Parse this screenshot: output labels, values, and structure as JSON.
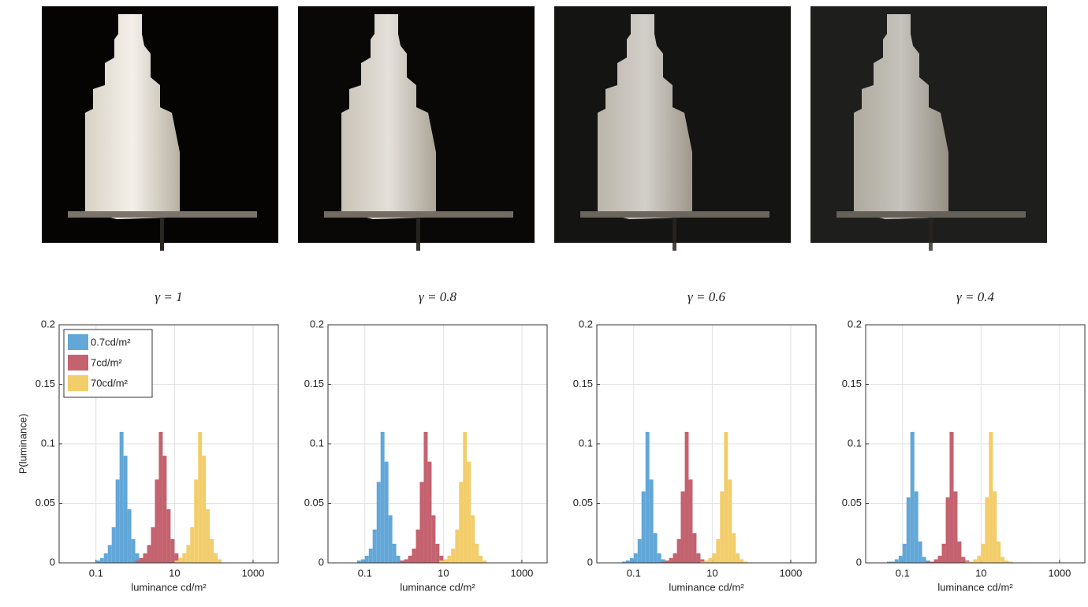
{
  "chart_data": [
    {
      "type": "histogram",
      "title": "γ = 1",
      "x_label": "luminance cd/m²",
      "y_label": "P(luminance)",
      "xscale": "log",
      "grid": true,
      "legend": "upper left",
      "xlim": [
        0.0115,
        4400
      ],
      "xticks": [
        0.1,
        10,
        1000
      ],
      "ylim": [
        0,
        0.2
      ],
      "yticks": [
        0,
        0.05,
        0.1,
        0.15,
        0.2
      ],
      "series": [
        {
          "name": "0.7cd/m²",
          "color": "#62a7d8",
          "bins": [
            0.1,
            0.126,
            0.158,
            0.2,
            0.251,
            0.316,
            0.398,
            0.501,
            0.631,
            0.794,
            1,
            1.26,
            1.58
          ],
          "values": [
            0.002,
            0.004,
            0.008,
            0.015,
            0.03,
            0.07,
            0.11,
            0.09,
            0.045,
            0.02,
            0.008,
            0.003
          ]
        },
        {
          "name": "7cd/m²",
          "color": "#c4626f",
          "bins": [
            1,
            1.26,
            1.58,
            2,
            2.51,
            3.16,
            3.98,
            5.01,
            6.31,
            7.94,
            10,
            12.6,
            15.8
          ],
          "values": [
            0.002,
            0.004,
            0.008,
            0.015,
            0.03,
            0.07,
            0.11,
            0.09,
            0.045,
            0.02,
            0.008,
            0.003
          ]
        },
        {
          "name": "70cd/m²",
          "color": "#f2cd6a",
          "bins": [
            10,
            12.6,
            15.8,
            20,
            25.1,
            31.6,
            39.8,
            50.1,
            63.1,
            79.4,
            100,
            126,
            158
          ],
          "values": [
            0.002,
            0.004,
            0.008,
            0.015,
            0.03,
            0.07,
            0.11,
            0.09,
            0.045,
            0.02,
            0.008,
            0.003
          ]
        }
      ]
    },
    {
      "type": "histogram",
      "title": "γ = 0.8",
      "x_label": "luminance cd/m²",
      "xscale": "log",
      "grid": true,
      "xlim": [
        0.0115,
        4400
      ],
      "xticks": [
        0.1,
        10,
        1000
      ],
      "ylim": [
        0,
        0.2
      ],
      "yticks": [
        0,
        0.05,
        0.1,
        0.15,
        0.2
      ],
      "series": [
        {
          "name": "0.7cd/m²",
          "color": "#62a7d8",
          "bins": [
            0.0631,
            0.0794,
            0.1,
            0.126,
            0.158,
            0.2,
            0.251,
            0.316,
            0.398,
            0.501,
            0.631,
            0.794,
            1
          ],
          "values": [
            0.002,
            0.003,
            0.006,
            0.012,
            0.028,
            0.068,
            0.11,
            0.085,
            0.04,
            0.016,
            0.006,
            0.002
          ]
        },
        {
          "name": "7cd/m²",
          "color": "#c4626f",
          "bins": [
            0.794,
            1,
            1.26,
            1.58,
            2,
            2.51,
            3.16,
            3.98,
            5.01,
            6.31,
            7.94,
            10,
            12.6
          ],
          "values": [
            0.002,
            0.003,
            0.006,
            0.012,
            0.028,
            0.068,
            0.11,
            0.085,
            0.04,
            0.016,
            0.006,
            0.002
          ]
        },
        {
          "name": "70cd/m²",
          "color": "#f2cd6a",
          "bins": [
            7.94,
            10,
            12.6,
            15.8,
            20,
            25.1,
            31.6,
            39.8,
            50.1,
            63.1,
            79.4,
            100,
            126
          ],
          "values": [
            0.002,
            0.003,
            0.006,
            0.012,
            0.028,
            0.068,
            0.11,
            0.085,
            0.04,
            0.016,
            0.006,
            0.002
          ]
        }
      ]
    },
    {
      "type": "histogram",
      "title": "γ = 0.6",
      "x_label": "luminance cd/m²",
      "xscale": "log",
      "grid": true,
      "xlim": [
        0.0115,
        4400
      ],
      "xticks": [
        0.1,
        10,
        1000
      ],
      "ylim": [
        0,
        0.2
      ],
      "yticks": [
        0,
        0.05,
        0.1,
        0.15,
        0.2
      ],
      "series": [
        {
          "name": "0.7cd/m²",
          "color": "#62a7d8",
          "bins": [
            0.0501,
            0.0631,
            0.0794,
            0.1,
            0.126,
            0.158,
            0.2,
            0.251,
            0.316,
            0.398,
            0.501,
            0.631,
            0.794
          ],
          "values": [
            0.001,
            0.002,
            0.004,
            0.008,
            0.02,
            0.06,
            0.11,
            0.07,
            0.025,
            0.008,
            0.003,
            0.001
          ]
        },
        {
          "name": "7cd/m²",
          "color": "#c4626f",
          "bins": [
            0.501,
            0.631,
            0.794,
            1,
            1.26,
            1.58,
            2,
            2.51,
            3.16,
            3.98,
            5.01,
            6.31,
            7.94
          ],
          "values": [
            0.001,
            0.002,
            0.004,
            0.008,
            0.02,
            0.06,
            0.11,
            0.07,
            0.025,
            0.008,
            0.003,
            0.001
          ]
        },
        {
          "name": "70cd/m²",
          "color": "#f2cd6a",
          "bins": [
            5.01,
            6.31,
            7.94,
            10,
            12.6,
            15.8,
            20,
            25.1,
            31.6,
            39.8,
            50.1,
            63.1,
            79.4
          ],
          "values": [
            0.001,
            0.002,
            0.004,
            0.008,
            0.02,
            0.06,
            0.11,
            0.07,
            0.025,
            0.008,
            0.003,
            0.001
          ]
        }
      ]
    },
    {
      "type": "histogram",
      "title": "γ = 0.4",
      "x_label": "luminance cd/m²",
      "xscale": "log",
      "grid": true,
      "xlim": [
        0.0115,
        4400
      ],
      "xticks": [
        0.1,
        10,
        1000
      ],
      "ylim": [
        0,
        0.2
      ],
      "yticks": [
        0,
        0.05,
        0.1,
        0.15,
        0.2
      ],
      "series": [
        {
          "name": "0.7cd/m²",
          "color": "#62a7d8",
          "bins": [
            0.0398,
            0.0501,
            0.0631,
            0.0794,
            0.1,
            0.126,
            0.158,
            0.2,
            0.251,
            0.316,
            0.398,
            0.501,
            0.631
          ],
          "values": [
            0.001,
            0.001,
            0.003,
            0.006,
            0.016,
            0.055,
            0.11,
            0.06,
            0.018,
            0.005,
            0.002,
            0.001
          ]
        },
        {
          "name": "7cd/m²",
          "color": "#c4626f",
          "bins": [
            0.398,
            0.501,
            0.631,
            0.794,
            1,
            1.26,
            1.58,
            2,
            2.51,
            3.16,
            3.98,
            5.01,
            6.31
          ],
          "values": [
            0.001,
            0.001,
            0.003,
            0.006,
            0.016,
            0.055,
            0.11,
            0.06,
            0.018,
            0.005,
            0.002,
            0.001
          ]
        },
        {
          "name": "70cd/m²",
          "color": "#f2cd6a",
          "bins": [
            3.98,
            5.01,
            6.31,
            7.94,
            10,
            12.6,
            15.8,
            20,
            25.1,
            31.6,
            39.8,
            50.1,
            63.1
          ],
          "values": [
            0.001,
            0.001,
            0.003,
            0.006,
            0.016,
            0.055,
            0.11,
            0.06,
            0.018,
            0.005,
            0.002,
            0.001
          ]
        }
      ]
    }
  ]
}
